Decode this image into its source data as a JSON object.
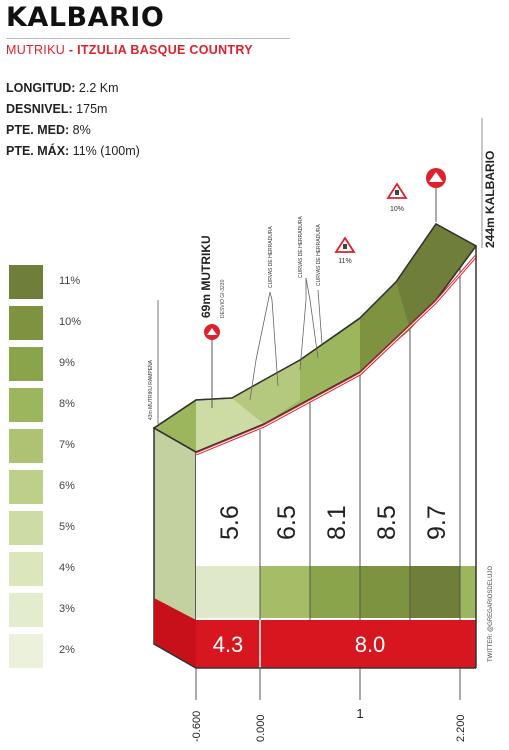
{
  "header": {
    "title": "KALBARIO",
    "start_town": "MUTRIKU",
    "separator": " - ",
    "race": "ITZULIA BASQUE COUNTRY"
  },
  "stats": [
    {
      "key": "LONGITUD:",
      "value": " 2.2 Km"
    },
    {
      "key": "DESNIVEL:",
      "value": " 175m"
    },
    {
      "key": "PTE. MED:",
      "value": " 8%"
    },
    {
      "key": "PTE. MÁX:",
      "value": " 11% (100m)"
    }
  ],
  "legend": [
    {
      "label": "11%",
      "color": "#6f7f3a"
    },
    {
      "label": "10%",
      "color": "#7e9340"
    },
    {
      "label": "9%",
      "color": "#8aa44c"
    },
    {
      "label": "8%",
      "color": "#9bb65c"
    },
    {
      "label": "7%",
      "color": "#adc373"
    },
    {
      "label": "6%",
      "color": "#bdd08a"
    },
    {
      "label": "5%",
      "color": "#cddca4"
    },
    {
      "label": "4%",
      "color": "#dbe6bd"
    },
    {
      "label": "3%",
      "color": "#e4ecce"
    },
    {
      "label": "2%",
      "color": "#ecf1dc"
    }
  ],
  "profile": {
    "start_label": "69m MUTRIKU",
    "start_sub": "DESVIO GI-3230",
    "end_label": "244m KALBARIO",
    "pre_annotation": "43m MUTRIKU RAMPENA",
    "curve1": "CURVAS DE HERRADURA",
    "curve2": "CURVAS DE HERRADURA",
    "curve3": "CURVAS DE HERRADURA",
    "max_label_1": "11%",
    "max_label_2": "10%",
    "credit": "TWITTER: @GREGARIOSDELUJO",
    "segment_gradients": [
      "5.6",
      "6.5",
      "8.1",
      "8.5",
      "9.7"
    ],
    "section_gradients": [
      "4.3",
      "8.0"
    ],
    "x_ticks": [
      "-0.600",
      "0.000",
      "1",
      "2.200"
    ]
  }
}
